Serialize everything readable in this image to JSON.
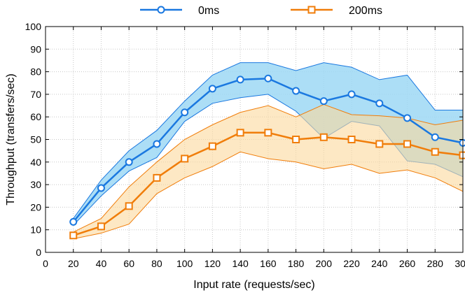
{
  "chart_data": {
    "type": "line",
    "xlabel": "Input rate (requests/sec)",
    "ylabel": "Throughput (transfers/sec)",
    "xlim": [
      0,
      300
    ],
    "ylim": [
      0,
      100
    ],
    "xticks": [
      0,
      20,
      40,
      60,
      80,
      100,
      120,
      140,
      160,
      180,
      200,
      220,
      240,
      260,
      280,
      300
    ],
    "yticks": [
      0,
      10,
      20,
      30,
      40,
      50,
      60,
      70,
      80,
      90,
      100
    ],
    "grid": true,
    "legend_position": "top",
    "x": [
      20,
      40,
      60,
      80,
      100,
      120,
      140,
      160,
      180,
      200,
      220,
      240,
      260,
      280,
      300
    ],
    "series": [
      {
        "name": "0ms",
        "color": "#1a78e0",
        "band_color": "#9ed8f5",
        "marker": "circle",
        "values": [
          13.5,
          28.5,
          40,
          48,
          62,
          72.5,
          76.5,
          77,
          71.5,
          67,
          70,
          66,
          59.5,
          51,
          48.5
        ],
        "upper": [
          15,
          32,
          45,
          54,
          67,
          78.5,
          84,
          84,
          80.5,
          84,
          82,
          76.5,
          78.5,
          63,
          63
        ],
        "lower": [
          12,
          25,
          36,
          42,
          58,
          66,
          68.5,
          70,
          62.5,
          50.5,
          58,
          56,
          40.5,
          39,
          33.5
        ]
      },
      {
        "name": "200ms",
        "color": "#f07d0a",
        "band_color": "#fbd99c",
        "marker": "square",
        "values": [
          7.5,
          11.5,
          20.5,
          33,
          41.5,
          47,
          53,
          53,
          50,
          51,
          50,
          48,
          48,
          44.5,
          43
        ],
        "upper": [
          9,
          15,
          29,
          40,
          50,
          56.5,
          62,
          65,
          60,
          65.5,
          61,
          60.5,
          59.5,
          56.5,
          58.5
        ],
        "lower": [
          6,
          8.5,
          12.5,
          26,
          33,
          38,
          44.5,
          41.5,
          40,
          37,
          39,
          35,
          36.5,
          33,
          27
        ]
      }
    ]
  }
}
